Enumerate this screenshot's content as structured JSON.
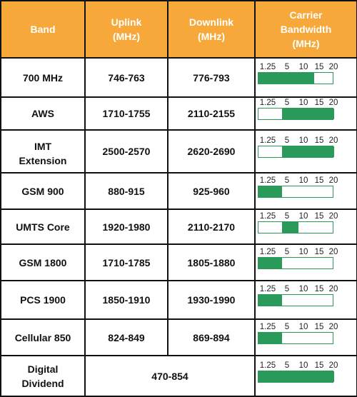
{
  "headers": {
    "band": "Band",
    "uplink_line1": "Uplink",
    "uplink_line2": "(MHz)",
    "downlink_line1": "Downlink",
    "downlink_line2": "(MHz)",
    "carrier_line1": "Carrier",
    "carrier_line2": "Bandwidth",
    "carrier_line3": "(MHz)"
  },
  "scale_ticks": [
    "1.25",
    "5",
    "10",
    "15",
    "20"
  ],
  "colors": {
    "header_bg": "#f7a83a",
    "bar_fill": "#2a9a5a"
  },
  "rows": [
    {
      "band_line1": "700 MHz",
      "band_line2": "",
      "uplink": "746-763",
      "downlink": "776-793",
      "bw_from": "1.25",
      "bw_to": "15"
    },
    {
      "band_line1": "AWS",
      "band_line2": "",
      "uplink": "1710-1755",
      "downlink": "2110-2155",
      "bw_from": "5",
      "bw_to": "20"
    },
    {
      "band_line1": "IMT",
      "band_line2": "Extension",
      "uplink": "2500-2570",
      "downlink": "2620-2690",
      "bw_from": "5",
      "bw_to": "20"
    },
    {
      "band_line1": "GSM 900",
      "band_line2": "",
      "uplink": "880-915",
      "downlink": "925-960",
      "bw_from": "1.25",
      "bw_to": "5"
    },
    {
      "band_line1": "UMTS Core",
      "band_line2": "",
      "uplink": "1920-1980",
      "downlink": "2110-2170",
      "bw_from": "5",
      "bw_to": "10"
    },
    {
      "band_line1": "GSM 1800",
      "band_line2": "",
      "uplink": "1710-1785",
      "downlink": "1805-1880",
      "bw_from": "1.25",
      "bw_to": "5"
    },
    {
      "band_line1": "PCS 1900",
      "band_line2": "",
      "uplink": "1850-1910",
      "downlink": "1930-1990",
      "bw_from": "1.25",
      "bw_to": "5"
    },
    {
      "band_line1": "Cellular 850",
      "band_line2": "",
      "uplink": "824-849",
      "downlink": "869-894",
      "bw_from": "1.25",
      "bw_to": "5"
    }
  ],
  "last_row": {
    "band_line1": "Digital",
    "band_line2": "Dividend",
    "range": "470-854",
    "bw_from": "1.25",
    "bw_to": "20"
  }
}
